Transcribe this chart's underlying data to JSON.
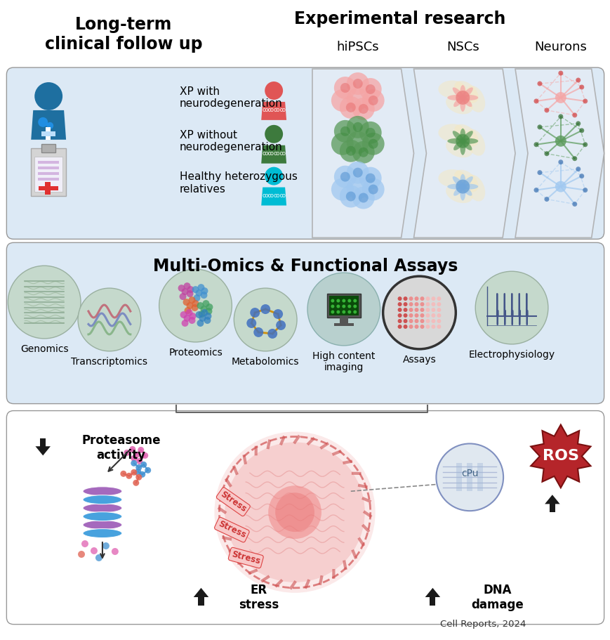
{
  "bg_color": "#ffffff",
  "panel1_bg": "#dce9f5",
  "panel2_bg": "#dce9f5",
  "panel3_bg": "#ffffff",
  "title_left": "Long-term\nclinical follow up",
  "title_right": "Experimental research",
  "col_labels": [
    "hiPSCs",
    "NSCs",
    "Neurons"
  ],
  "row_labels": [
    "XP with\nneurodegeneration",
    "XP without\nneurodegeneration",
    "Healthy heterozygous\nrelatives"
  ],
  "row_colors_person": [
    "#e05555",
    "#3d7a3d",
    "#00bcd4"
  ],
  "panel2_title": "Multi-Omics & Functional Assays",
  "omics_labels": [
    "Genomics",
    "Transcriptomics",
    "Proteomics",
    "Metabolomics",
    "High content\nimaging",
    "Assays",
    "Electrophysiology"
  ],
  "panel3_label_proteasome": "Proteasome\nactivity",
  "panel3_label_er": "ER\nstress",
  "panel3_label_dna": "DNA\ndamage",
  "panel3_label_ros": "ROS",
  "citation": "Cell Reports, 2024",
  "arrow_color": "#1a1a1a",
  "ros_color": "#b5252a",
  "doctor_color": "#1e6fa0",
  "clipboard_color": "#c8c8c8"
}
